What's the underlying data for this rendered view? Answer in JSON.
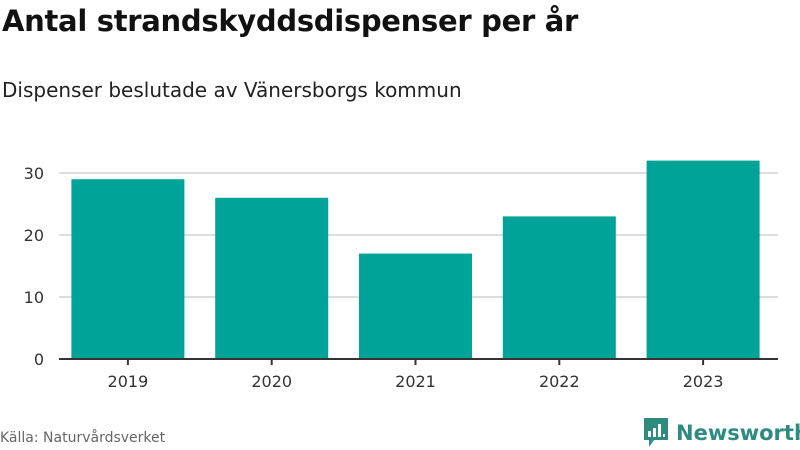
{
  "title": "Antal strandskyddsdispenser per år",
  "subtitle": "Dispenser beslutade av Vänersborgs kommun",
  "source": "Källa: Naturvårdsverket",
  "logo": "Newsworthy",
  "colors": {
    "bar": "#00a398",
    "grid": "#dddddd",
    "axis": "#333333",
    "logo": "#2e8b7f"
  },
  "chart_data": {
    "type": "bar",
    "title": "Antal strandskyddsdispenser per år",
    "subtitle": "Dispenser beslutade av Vänersborgs kommun",
    "xlabel": "",
    "ylabel": "",
    "categories": [
      "2019",
      "2020",
      "2021",
      "2022",
      "2023"
    ],
    "values": [
      29,
      26,
      17,
      23,
      32
    ],
    "ylim": [
      0,
      32
    ],
    "yticks": [
      0,
      10,
      20,
      30
    ],
    "grid": true,
    "legend": "none"
  }
}
